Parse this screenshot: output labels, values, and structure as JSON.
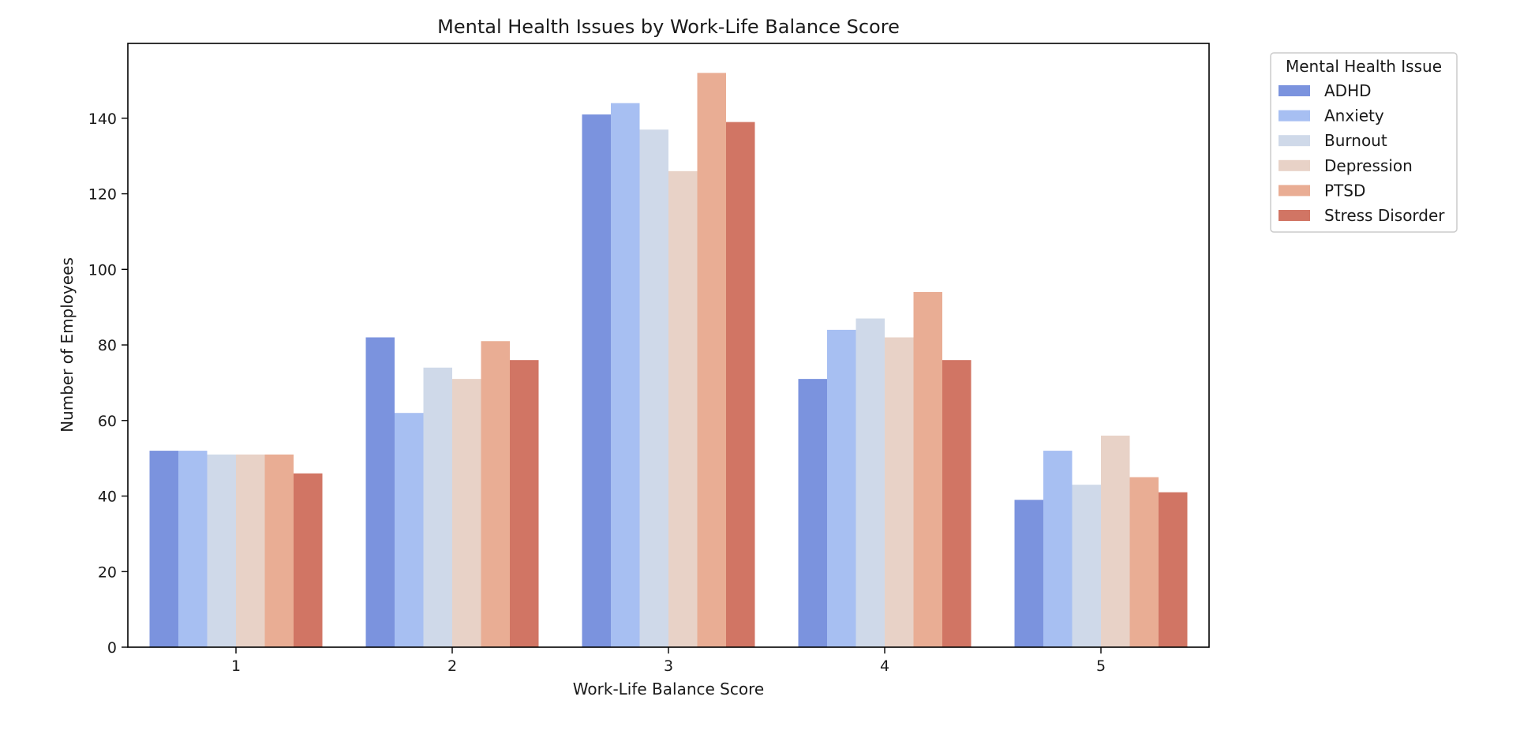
{
  "chart_data": {
    "type": "bar",
    "title": "Mental Health Issues by Work-Life Balance Score",
    "xlabel": "Work-Life Balance Score",
    "ylabel": "Number of Employees",
    "categories": [
      "1",
      "2",
      "3",
      "4",
      "5"
    ],
    "ylim": [
      0,
      160
    ],
    "yticks": [
      0,
      20,
      40,
      60,
      80,
      100,
      120,
      140
    ],
    "grid": false,
    "legend": {
      "title": "Mental Health Issue",
      "position": "outside-top-right"
    },
    "series": [
      {
        "name": "ADHD",
        "color": "#7b93de",
        "values": [
          52,
          82,
          141,
          71,
          39
        ]
      },
      {
        "name": "Anxiety",
        "color": "#a7bff2",
        "values": [
          52,
          62,
          144,
          84,
          52
        ]
      },
      {
        "name": "Burnout",
        "color": "#cfd9e9",
        "values": [
          51,
          74,
          137,
          87,
          43
        ]
      },
      {
        "name": "Depression",
        "color": "#e8d2c7",
        "values": [
          51,
          71,
          126,
          82,
          56
        ]
      },
      {
        "name": "PTSD",
        "color": "#e9ad94",
        "values": [
          51,
          81,
          152,
          94,
          45
        ]
      },
      {
        "name": "Stress Disorder",
        "color": "#d17564",
        "values": [
          46,
          76,
          139,
          76,
          41
        ]
      }
    ]
  }
}
